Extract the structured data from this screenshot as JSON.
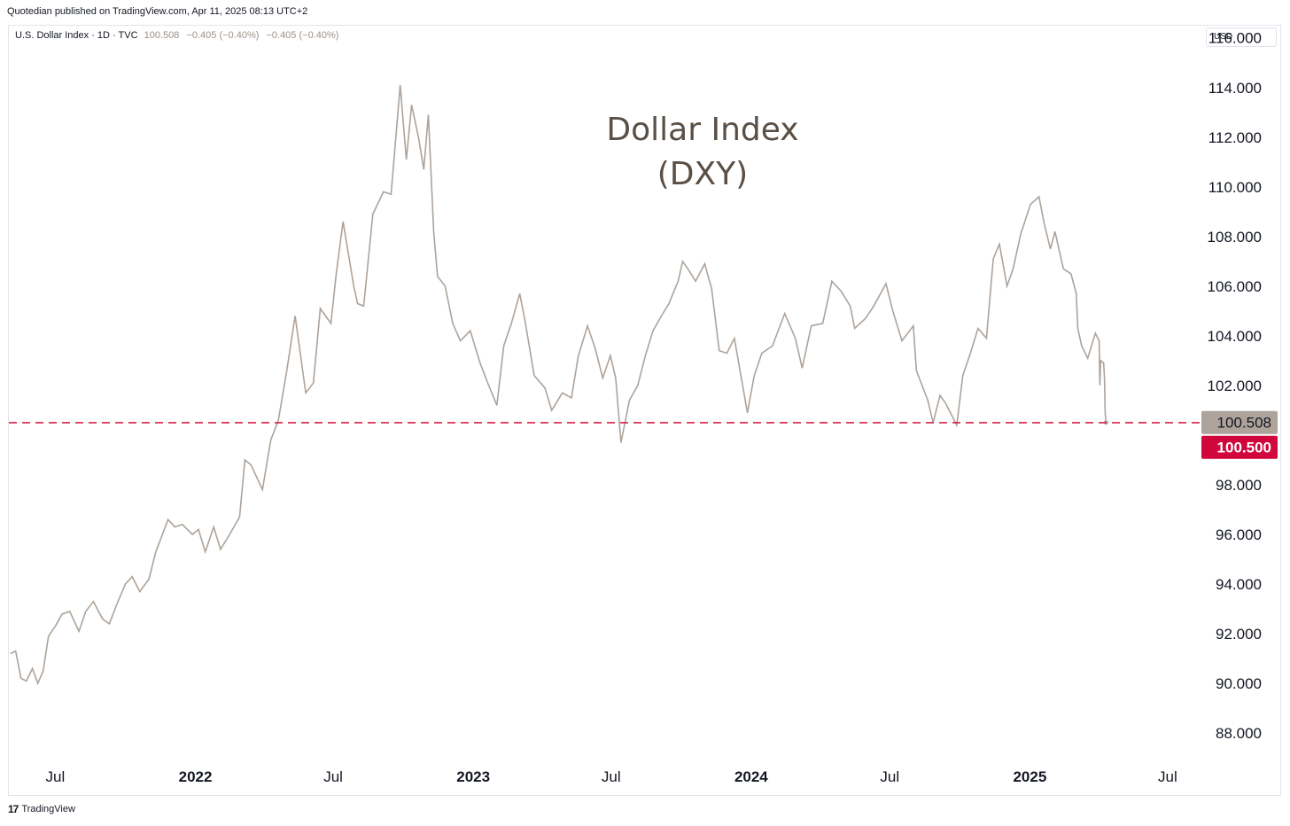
{
  "header": {
    "published": "Quotedian published on TradingView.com, Apr 11, 2025 08:13 UTC+2"
  },
  "legend": {
    "symbol": "U.S. Dollar Index · 1D · TVC",
    "last": "100.508",
    "change": "−0.405 (−0.40%)",
    "change2": "−0.405 (−0.40%)"
  },
  "currency_button": "USD",
  "footer": {
    "brand": "TradingView"
  },
  "colors": {
    "series": "#ada39a",
    "hline": "#d6224a",
    "price_tag": "#ada39a",
    "hline_tag": "#d0063c",
    "title": "#5a4f45"
  },
  "chart_data": {
    "type": "line",
    "title": "Dollar Index\n(DXY)",
    "series": [
      {
        "values": [
          [
            "2021-05-03",
            91.2
          ],
          [
            "2021-05-10",
            91.3
          ],
          [
            "2021-05-17",
            90.2
          ],
          [
            "2021-05-24",
            90.1
          ],
          [
            "2021-06-01",
            90.6
          ],
          [
            "2021-06-08",
            90.0
          ],
          [
            "2021-06-15",
            90.5
          ],
          [
            "2021-06-22",
            91.9
          ],
          [
            "2021-07-01",
            92.3
          ],
          [
            "2021-07-10",
            92.8
          ],
          [
            "2021-07-20",
            92.9
          ],
          [
            "2021-08-01",
            92.1
          ],
          [
            "2021-08-10",
            92.9
          ],
          [
            "2021-08-20",
            93.3
          ],
          [
            "2021-09-01",
            92.6
          ],
          [
            "2021-09-10",
            92.4
          ],
          [
            "2021-09-20",
            93.2
          ],
          [
            "2021-10-01",
            94.0
          ],
          [
            "2021-10-10",
            94.3
          ],
          [
            "2021-10-20",
            93.7
          ],
          [
            "2021-11-01",
            94.2
          ],
          [
            "2021-11-10",
            95.3
          ],
          [
            "2021-11-20",
            96.1
          ],
          [
            "2021-11-26",
            96.6
          ],
          [
            "2021-12-05",
            96.3
          ],
          [
            "2021-12-15",
            96.4
          ],
          [
            "2021-12-28",
            96.0
          ],
          [
            "2022-01-05",
            96.2
          ],
          [
            "2022-01-14",
            95.3
          ],
          [
            "2022-01-25",
            96.3
          ],
          [
            "2022-02-03",
            95.4
          ],
          [
            "2022-02-15",
            96.0
          ],
          [
            "2022-02-28",
            96.7
          ],
          [
            "2022-03-07",
            99.0
          ],
          [
            "2022-03-15",
            98.8
          ],
          [
            "2022-03-30",
            97.8
          ],
          [
            "2022-04-10",
            99.8
          ],
          [
            "2022-04-20",
            100.6
          ],
          [
            "2022-05-01",
            102.6
          ],
          [
            "2022-05-12",
            104.8
          ],
          [
            "2022-05-26",
            101.7
          ],
          [
            "2022-06-05",
            102.1
          ],
          [
            "2022-06-14",
            105.1
          ],
          [
            "2022-06-28",
            104.5
          ],
          [
            "2022-07-05",
            106.5
          ],
          [
            "2022-07-14",
            108.6
          ],
          [
            "2022-07-28",
            106.0
          ],
          [
            "2022-08-02",
            105.3
          ],
          [
            "2022-08-10",
            105.2
          ],
          [
            "2022-08-22",
            108.9
          ],
          [
            "2022-09-05",
            109.8
          ],
          [
            "2022-09-15",
            109.7
          ],
          [
            "2022-09-27",
            114.1
          ],
          [
            "2022-10-05",
            111.1
          ],
          [
            "2022-10-12",
            113.3
          ],
          [
            "2022-10-21",
            112.0
          ],
          [
            "2022-10-28",
            110.7
          ],
          [
            "2022-11-03",
            112.9
          ],
          [
            "2022-11-10",
            108.2
          ],
          [
            "2022-11-15",
            106.4
          ],
          [
            "2022-11-25",
            106.0
          ],
          [
            "2022-12-05",
            104.5
          ],
          [
            "2022-12-15",
            103.8
          ],
          [
            "2022-12-28",
            104.2
          ],
          [
            "2023-01-10",
            102.9
          ],
          [
            "2023-01-20",
            102.1
          ],
          [
            "2023-02-01",
            101.2
          ],
          [
            "2023-02-10",
            103.6
          ],
          [
            "2023-02-20",
            104.5
          ],
          [
            "2023-03-03",
            105.7
          ],
          [
            "2023-03-10",
            104.6
          ],
          [
            "2023-03-22",
            102.4
          ],
          [
            "2023-04-05",
            101.9
          ],
          [
            "2023-04-14",
            101.0
          ],
          [
            "2023-04-28",
            101.7
          ],
          [
            "2023-05-10",
            101.5
          ],
          [
            "2023-05-19",
            103.2
          ],
          [
            "2023-05-31",
            104.4
          ],
          [
            "2023-06-10",
            103.5
          ],
          [
            "2023-06-20",
            102.3
          ],
          [
            "2023-06-30",
            103.2
          ],
          [
            "2023-07-07",
            102.3
          ],
          [
            "2023-07-14",
            99.7
          ],
          [
            "2023-07-25",
            101.4
          ],
          [
            "2023-08-05",
            102.0
          ],
          [
            "2023-08-15",
            103.2
          ],
          [
            "2023-08-25",
            104.2
          ],
          [
            "2023-09-05",
            104.8
          ],
          [
            "2023-09-15",
            105.3
          ],
          [
            "2023-09-27",
            106.2
          ],
          [
            "2023-10-03",
            107.0
          ],
          [
            "2023-10-12",
            106.6
          ],
          [
            "2023-10-20",
            106.2
          ],
          [
            "2023-11-01",
            106.9
          ],
          [
            "2023-11-10",
            105.9
          ],
          [
            "2023-11-20",
            103.4
          ],
          [
            "2023-11-30",
            103.3
          ],
          [
            "2023-12-10",
            103.9
          ],
          [
            "2023-12-27",
            100.9
          ],
          [
            "2024-01-05",
            102.4
          ],
          [
            "2024-01-15",
            103.3
          ],
          [
            "2024-01-29",
            103.6
          ],
          [
            "2024-02-14",
            104.9
          ],
          [
            "2024-02-28",
            103.9
          ],
          [
            "2024-03-08",
            102.7
          ],
          [
            "2024-03-20",
            104.4
          ],
          [
            "2024-04-04",
            104.5
          ],
          [
            "2024-04-16",
            106.2
          ],
          [
            "2024-04-28",
            105.8
          ],
          [
            "2024-05-10",
            105.2
          ],
          [
            "2024-05-16",
            104.3
          ],
          [
            "2024-05-30",
            104.7
          ],
          [
            "2024-06-10",
            105.2
          ],
          [
            "2024-06-26",
            106.1
          ],
          [
            "2024-07-05",
            105.0
          ],
          [
            "2024-07-17",
            103.8
          ],
          [
            "2024-08-01",
            104.4
          ],
          [
            "2024-08-05",
            102.6
          ],
          [
            "2024-08-20",
            101.4
          ],
          [
            "2024-08-27",
            100.5
          ],
          [
            "2024-09-05",
            101.6
          ],
          [
            "2024-09-12",
            101.3
          ],
          [
            "2024-09-27",
            100.4
          ],
          [
            "2024-10-05",
            102.4
          ],
          [
            "2024-10-15",
            103.3
          ],
          [
            "2024-10-25",
            104.3
          ],
          [
            "2024-11-05",
            103.9
          ],
          [
            "2024-11-14",
            107.1
          ],
          [
            "2024-11-22",
            107.7
          ],
          [
            "2024-12-02",
            106.0
          ],
          [
            "2024-12-10",
            106.7
          ],
          [
            "2024-12-20",
            108.1
          ],
          [
            "2025-01-02",
            109.3
          ],
          [
            "2025-01-13",
            109.6
          ],
          [
            "2025-01-20",
            108.5
          ],
          [
            "2025-01-28",
            107.5
          ],
          [
            "2025-02-03",
            108.2
          ],
          [
            "2025-02-14",
            106.7
          ],
          [
            "2025-02-24",
            106.5
          ],
          [
            "2025-03-03",
            105.7
          ],
          [
            "2025-03-05",
            104.3
          ],
          [
            "2025-03-10",
            103.6
          ],
          [
            "2025-03-18",
            103.1
          ],
          [
            "2025-03-28",
            104.1
          ],
          [
            "2025-04-02",
            103.8
          ],
          [
            "2025-04-03",
            102.0
          ],
          [
            "2025-04-04",
            103.0
          ],
          [
            "2025-04-08",
            102.9
          ],
          [
            "2025-04-09",
            102.3
          ],
          [
            "2025-04-10",
            100.9
          ],
          [
            "2025-04-11",
            100.508
          ]
        ]
      }
    ],
    "x_ticks": [
      {
        "date": "2021-07-01",
        "label": "Jul",
        "bold": false
      },
      {
        "date": "2022-01-01",
        "label": "2022",
        "bold": true
      },
      {
        "date": "2022-07-01",
        "label": "Jul",
        "bold": false
      },
      {
        "date": "2023-01-01",
        "label": "2023",
        "bold": true
      },
      {
        "date": "2023-07-01",
        "label": "Jul",
        "bold": false
      },
      {
        "date": "2024-01-01",
        "label": "2024",
        "bold": true
      },
      {
        "date": "2024-07-01",
        "label": "Jul",
        "bold": false
      },
      {
        "date": "2025-01-01",
        "label": "2025",
        "bold": true
      },
      {
        "date": "2025-07-01",
        "label": "Jul",
        "bold": false
      }
    ],
    "y_ticks": [
      88,
      90,
      92,
      94,
      96,
      98,
      102,
      104,
      106,
      108,
      110,
      112,
      114,
      116
    ],
    "y_tick_labels": [
      "88.000",
      "90.000",
      "92.000",
      "94.000",
      "96.000",
      "98.000",
      "102.000",
      "104.000",
      "106.000",
      "108.000",
      "110.000",
      "112.000",
      "114.000",
      "116.000"
    ],
    "xlim": [
      "2021-05-01",
      "2025-08-12"
    ],
    "ylim": [
      86.97,
      116.49
    ],
    "grid": false,
    "horizontal_line": {
      "value": 100.5,
      "label": "100.500",
      "style": "dashed"
    },
    "last_price": {
      "value": 100.508,
      "label": "100.508"
    }
  }
}
